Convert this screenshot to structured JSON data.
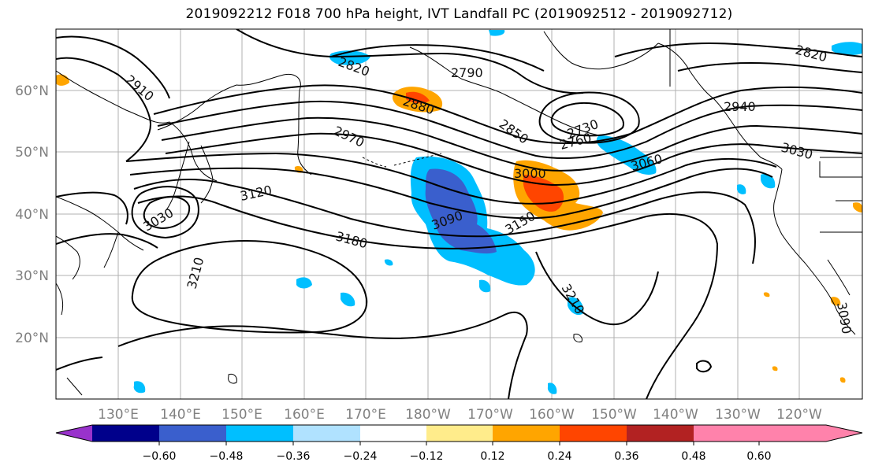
{
  "title": "2019092212 F018 700 hPa height, IVT Landfall PC (2019092512 - 2019092712)",
  "lat_labels": [
    "60°N",
    "50°N",
    "40°N",
    "30°N",
    "20°N"
  ],
  "lon_labels": [
    "130°E",
    "140°E",
    "150°E",
    "160°E",
    "170°E",
    "180°W",
    "170°W",
    "160°W",
    "150°W",
    "140°W",
    "130°W",
    "120°W"
  ],
  "contour_labels": [
    "2910",
    "2820",
    "2790",
    "2880",
    "2970",
    "2850",
    "2730",
    "2760",
    "2940",
    "3030",
    "3060",
    "3000",
    "3120",
    "3090",
    "3150",
    "3030",
    "3180",
    "3210",
    "3210",
    "2820",
    "3090"
  ],
  "colorbar": {
    "tick_labels": [
      "−0.60",
      "−0.48",
      "−0.36",
      "−0.24",
      "−0.12",
      "0.12",
      "0.24",
      "0.36",
      "0.48",
      "0.60"
    ],
    "colors": [
      "#9932cc",
      "#00008b",
      "#3a5fcd",
      "#00bfff",
      "#b0e2ff",
      "#ffffff",
      "#ffec8b",
      "#ffa500",
      "#ff4500",
      "#b22222",
      "#ff82ab"
    ]
  }
}
